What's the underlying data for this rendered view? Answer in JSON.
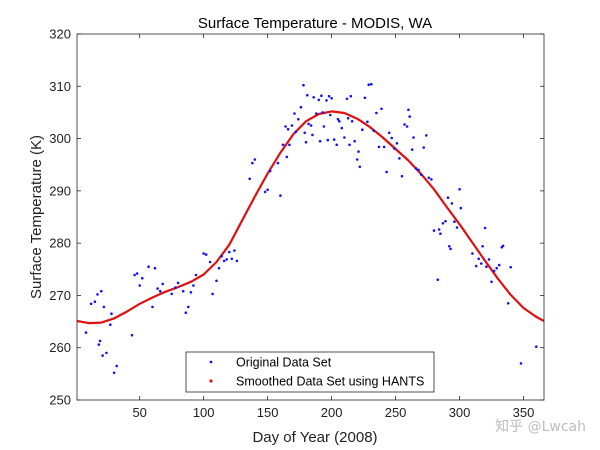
{
  "chart_data": {
    "type": "scatter",
    "title": "Surface Temperature - MODIS, WA",
    "xlabel": "Day of Year (2008)",
    "ylabel": "Surface Temperature (K)",
    "xlim": [
      1,
      366
    ],
    "ylim": [
      250,
      320
    ],
    "xticks": [
      50,
      100,
      150,
      200,
      250,
      300,
      350
    ],
    "yticks": [
      250,
      260,
      270,
      280,
      290,
      300,
      310,
      320
    ],
    "grid": false,
    "legend": {
      "placement": "bottom-center",
      "entries": [
        "Original Data Set",
        "Smoothed Data Set using HANTS"
      ]
    },
    "colors": {
      "original": "#1010ff",
      "smoothed": "#e01010",
      "axis": "#262626"
    },
    "series": [
      {
        "name": "Original Data Set",
        "style": "dots",
        "points": [
          [
            8,
            262.9
          ],
          [
            12,
            268.4
          ],
          [
            15,
            268.8
          ],
          [
            17,
            270.2
          ],
          [
            18,
            260.6
          ],
          [
            19,
            261.3
          ],
          [
            20,
            270.8
          ],
          [
            21,
            258.5
          ],
          [
            22,
            267.8
          ],
          [
            24,
            259.0
          ],
          [
            27,
            264.4
          ],
          [
            28,
            266.5
          ],
          [
            30,
            255.2
          ],
          [
            32,
            256.5
          ],
          [
            44,
            262.4
          ],
          [
            46,
            273.9
          ],
          [
            48,
            274.2
          ],
          [
            50,
            271.9
          ],
          [
            52,
            273.3
          ],
          [
            57,
            275.5
          ],
          [
            60,
            267.8
          ],
          [
            62,
            275.2
          ],
          [
            64,
            271.3
          ],
          [
            66,
            270.8
          ],
          [
            68,
            272.2
          ],
          [
            75,
            270.3
          ],
          [
            78,
            271.5
          ],
          [
            80,
            272.4
          ],
          [
            84,
            270.8
          ],
          [
            86,
            266.7
          ],
          [
            88,
            267.8
          ],
          [
            90,
            270.6
          ],
          [
            92,
            271.9
          ],
          [
            94,
            273.9
          ],
          [
            100,
            278.0
          ],
          [
            102,
            277.8
          ],
          [
            105,
            276.4
          ],
          [
            107,
            270.3
          ],
          [
            110,
            272.8
          ],
          [
            112,
            275.2
          ],
          [
            114,
            277.5
          ],
          [
            116,
            276.6
          ],
          [
            118,
            276.9
          ],
          [
            120,
            278.3
          ],
          [
            122,
            277.0
          ],
          [
            124,
            278.6
          ],
          [
            126,
            276.6
          ],
          [
            136,
            292.3
          ],
          [
            138,
            295.3
          ],
          [
            140,
            296.0
          ],
          [
            148,
            289.8
          ],
          [
            150,
            290.2
          ],
          [
            152,
            293.8
          ],
          [
            158,
            295.3
          ],
          [
            160,
            289.1
          ],
          [
            162,
            298.8
          ],
          [
            164,
            302.3
          ],
          [
            165,
            296.5
          ],
          [
            166,
            301.8
          ],
          [
            167,
            298.8
          ],
          [
            169,
            302.5
          ],
          [
            171,
            304.8
          ],
          [
            172,
            301.3
          ],
          [
            174,
            303.7
          ],
          [
            176,
            306.0
          ],
          [
            178,
            310.2
          ],
          [
            179,
            301.1
          ],
          [
            180,
            299.3
          ],
          [
            181,
            308.3
          ],
          [
            182,
            302.8
          ],
          [
            184,
            302.5
          ],
          [
            185,
            300.7
          ],
          [
            186,
            307.9
          ],
          [
            188,
            304.8
          ],
          [
            190,
            307.4
          ],
          [
            191,
            299.5
          ],
          [
            192,
            308.2
          ],
          [
            193,
            305.0
          ],
          [
            194,
            302.3
          ],
          [
            196,
            307.3
          ],
          [
            197,
            299.7
          ],
          [
            198,
            308.1
          ],
          [
            199,
            304.5
          ],
          [
            200,
            307.7
          ],
          [
            202,
            299.8
          ],
          [
            204,
            298.8
          ],
          [
            205,
            303.7
          ],
          [
            206,
            303.3
          ],
          [
            208,
            302.0
          ],
          [
            210,
            300.2
          ],
          [
            212,
            307.6
          ],
          [
            213,
            303.9
          ],
          [
            214,
            298.8
          ],
          [
            215,
            308.1
          ],
          [
            216,
            303.3
          ],
          [
            218,
            299.5
          ],
          [
            220,
            296.0
          ],
          [
            221,
            297.5
          ],
          [
            222,
            294.6
          ],
          [
            224,
            301.7
          ],
          [
            226,
            307.8
          ],
          [
            228,
            303.2
          ],
          [
            229,
            310.3
          ],
          [
            231,
            310.4
          ],
          [
            233,
            301.5
          ],
          [
            235,
            304.9
          ],
          [
            237,
            298.4
          ],
          [
            239,
            305.7
          ],
          [
            241,
            298.4
          ],
          [
            243,
            293.6
          ],
          [
            245,
            301.1
          ],
          [
            247,
            300.1
          ],
          [
            249,
            298.1
          ],
          [
            251,
            299.1
          ],
          [
            253,
            296.2
          ],
          [
            255,
            292.8
          ],
          [
            257,
            302.7
          ],
          [
            259,
            302.3
          ],
          [
            260,
            305.5
          ],
          [
            261,
            304.2
          ],
          [
            263,
            297.9
          ],
          [
            264,
            300.2
          ],
          [
            266,
            294.3
          ],
          [
            268,
            294.0
          ],
          [
            270,
            293.1
          ],
          [
            272,
            298.3
          ],
          [
            274,
            300.6
          ],
          [
            276,
            292.5
          ],
          [
            278,
            292.2
          ],
          [
            280,
            282.4
          ],
          [
            283,
            273.0
          ],
          [
            284,
            282.6
          ],
          [
            285,
            281.8
          ],
          [
            287,
            283.8
          ],
          [
            289,
            284.2
          ],
          [
            291,
            288.7
          ],
          [
            292,
            279.4
          ],
          [
            293,
            278.9
          ],
          [
            294,
            287.6
          ],
          [
            296,
            284.1
          ],
          [
            298,
            283.0
          ],
          [
            300,
            290.3
          ],
          [
            301,
            286.7
          ],
          [
            310,
            278.0
          ],
          [
            313,
            275.6
          ],
          [
            315,
            277.0
          ],
          [
            317,
            276.1
          ],
          [
            318,
            279.4
          ],
          [
            320,
            282.9
          ],
          [
            321,
            275.5
          ],
          [
            323,
            276.9
          ],
          [
            325,
            272.6
          ],
          [
            327,
            274.7
          ],
          [
            329,
            275.2
          ],
          [
            331,
            275.8
          ],
          [
            333,
            279.2
          ],
          [
            334,
            279.5
          ],
          [
            338,
            268.5
          ],
          [
            340,
            275.4
          ],
          [
            348,
            257.0
          ],
          [
            360,
            260.2
          ]
        ]
      },
      {
        "name": "Smoothed Data Set using HANTS",
        "style": "line",
        "points": [
          [
            1,
            265.1
          ],
          [
            10,
            264.7
          ],
          [
            20,
            264.8
          ],
          [
            30,
            265.6
          ],
          [
            40,
            266.9
          ],
          [
            50,
            268.4
          ],
          [
            60,
            269.6
          ],
          [
            70,
            270.7
          ],
          [
            80,
            271.6
          ],
          [
            90,
            272.6
          ],
          [
            100,
            274.0
          ],
          [
            110,
            276.4
          ],
          [
            120,
            279.7
          ],
          [
            130,
            284.3
          ],
          [
            140,
            288.9
          ],
          [
            150,
            293.3
          ],
          [
            160,
            297.3
          ],
          [
            170,
            300.8
          ],
          [
            180,
            303.3
          ],
          [
            190,
            304.7
          ],
          [
            200,
            305.2
          ],
          [
            210,
            304.9
          ],
          [
            220,
            303.8
          ],
          [
            230,
            302.2
          ],
          [
            240,
            300.2
          ],
          [
            250,
            298.0
          ],
          [
            260,
            295.8
          ],
          [
            270,
            293.2
          ],
          [
            280,
            290.3
          ],
          [
            290,
            286.9
          ],
          [
            300,
            283.6
          ],
          [
            310,
            280.1
          ],
          [
            320,
            276.6
          ],
          [
            330,
            273.2
          ],
          [
            340,
            270.1
          ],
          [
            350,
            267.6
          ],
          [
            360,
            265.9
          ],
          [
            366,
            265.1
          ]
        ]
      }
    ]
  },
  "watermark": "知乎 @Lwcah"
}
